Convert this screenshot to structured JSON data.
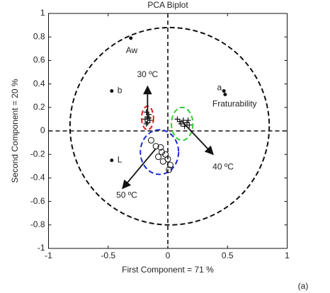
{
  "chart_data": {
    "type": "biplot",
    "title": "PCA Biplot",
    "x_label": "First Component = 71 %",
    "y_label": "Second Component = 20 %",
    "panel_label": "(a)",
    "xlim": [
      -1,
      1
    ],
    "ylim": [
      -1,
      1
    ],
    "xticks": [
      -1,
      -0.5,
      0,
      0.5,
      1
    ],
    "yticks": [
      -1,
      -0.8,
      -0.6,
      -0.4,
      -0.2,
      0,
      0.2,
      0.4,
      0.6,
      0.8,
      1
    ],
    "points": [
      {
        "label": "Aw",
        "x": -0.31,
        "y": 0.79
      },
      {
        "label": "b",
        "x": -0.47,
        "y": 0.34
      },
      {
        "label": "a",
        "x": 0.47,
        "y": 0.34
      },
      {
        "label": "Fraturability",
        "x": 0.48,
        "y": 0.31
      },
      {
        "label": "L",
        "x": -0.47,
        "y": -0.25
      }
    ],
    "arrows": [
      {
        "label": "30 ºC",
        "x": [
          -0.17,
          -0.17
        ],
        "y": [
          0.1,
          0.38
        ]
      },
      {
        "label": "40 ºC",
        "x": [
          0.12,
          0.38
        ],
        "y": [
          0.08,
          -0.2
        ]
      },
      {
        "label": "50 ºC",
        "x": [
          -0.1,
          -0.38
        ],
        "y": [
          -0.15,
          -0.49
        ]
      }
    ],
    "clusters": [
      {
        "marker": "plus",
        "x": [
          -0.18,
          -0.16,
          -0.17,
          -0.19,
          -0.15,
          -0.17,
          -0.18,
          -0.16
        ],
        "y": [
          0.16,
          0.14,
          0.12,
          0.1,
          0.09,
          0.07,
          0.06,
          0.11
        ]
      },
      {
        "marker": "plus",
        "x": [
          0.08,
          0.1,
          0.13,
          0.16,
          0.18,
          0.14,
          0.17,
          0.11
        ],
        "y": [
          0.1,
          0.08,
          0.09,
          0.07,
          0.05,
          0.04,
          0.09,
          0.06
        ]
      },
      {
        "marker": "circle",
        "x": [
          -0.14,
          -0.1,
          -0.06,
          -0.05,
          -0.02,
          0.0,
          0.02,
          -0.08,
          -0.04,
          0.01
        ],
        "y": [
          -0.08,
          -0.13,
          -0.14,
          -0.18,
          -0.2,
          -0.24,
          -0.29,
          -0.22,
          -0.26,
          -0.33
        ]
      }
    ],
    "ellipses": [
      {
        "cx": 0.015,
        "cy": 0.04,
        "rx": 0.835,
        "ry": 0.84,
        "color": "#111111"
      },
      {
        "cx": -0.17,
        "cy": 0.11,
        "rx": 0.05,
        "ry": 0.1,
        "color": "#e02020"
      },
      {
        "cx": 0.12,
        "cy": 0.06,
        "rx": 0.09,
        "ry": 0.14,
        "color": "#33cc33"
      },
      {
        "cx": -0.07,
        "cy": -0.18,
        "rx": 0.16,
        "ry": 0.19,
        "color": "#1a2bd0"
      }
    ]
  }
}
